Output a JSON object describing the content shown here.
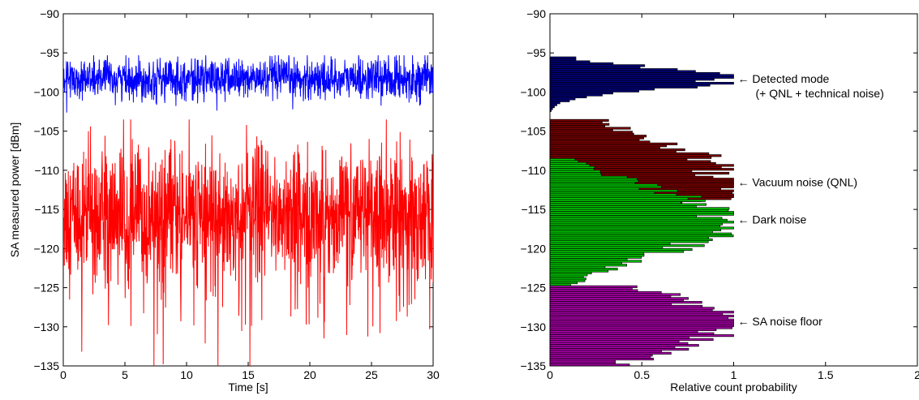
{
  "chart_data": [
    {
      "type": "line",
      "title": "",
      "xlabel": "Time [s]",
      "ylabel": "SA measured power [dBm]",
      "xlim": [
        0,
        30
      ],
      "ylim": [
        -135,
        -90
      ],
      "xticks": [
        "0",
        "5",
        "10",
        "15",
        "20",
        "25",
        "30"
      ],
      "yticks": [
        "−90",
        "−95",
        "−100",
        "−105",
        "−110",
        "−115",
        "−120",
        "−125",
        "−130",
        "−135"
      ],
      "grid": false,
      "series": [
        {
          "color": "#0000ff",
          "mean": -98.3,
          "range": [
            -104,
            -95.3
          ]
        },
        {
          "color": "#ff0000",
          "mean": -115.5,
          "range": [
            -135,
            -103.5
          ]
        }
      ]
    },
    {
      "type": "horizontal-histogram",
      "title": "",
      "xlabel": "Relative count probability",
      "ylabel": "",
      "xlim": [
        0,
        2
      ],
      "ylim": [
        -135,
        -90
      ],
      "xticks": [
        "0",
        "0.5",
        "1",
        "1.5",
        "2"
      ],
      "yticks": [
        "−90",
        "−95",
        "−100",
        "−105",
        "−110",
        "−115",
        "−120",
        "−125",
        "−130",
        "−135"
      ],
      "grid": false,
      "bin_width": 0.25,
      "series": [
        {
          "color": "#00007f",
          "peak_y": -98.3,
          "range": [
            -103,
            -95.5
          ],
          "sigma": 1.3,
          "amplitude": 1.0
        },
        {
          "color": "#800000",
          "peak_y": -111.5,
          "range": [
            -135,
            -103.5
          ],
          "sigma": 5.0,
          "amplitude": 1.0
        },
        {
          "color": "#00cc00",
          "peak_y": -116.5,
          "range": [
            -135,
            -108.5
          ],
          "sigma": 4.0,
          "amplitude": 1.0
        },
        {
          "color": "#b000b0",
          "peak_y": -129.5,
          "range": [
            -135,
            -124.8
          ],
          "sigma": 3.8,
          "amplitude": 1.0
        }
      ],
      "annotations": [
        {
          "y": -98.3,
          "x": 1.0,
          "lines": [
            "← Detected mode",
            "(+ QNL + technical noise)"
          ]
        },
        {
          "y": -111.5,
          "x": 1.0,
          "lines": [
            "← Vacuum noise (QNL)"
          ]
        },
        {
          "y": -116.3,
          "x": 1.0,
          "lines": [
            "← Dark noise"
          ]
        },
        {
          "y": -129.3,
          "x": 1.0,
          "lines": [
            "← SA noise floor"
          ]
        }
      ]
    }
  ]
}
